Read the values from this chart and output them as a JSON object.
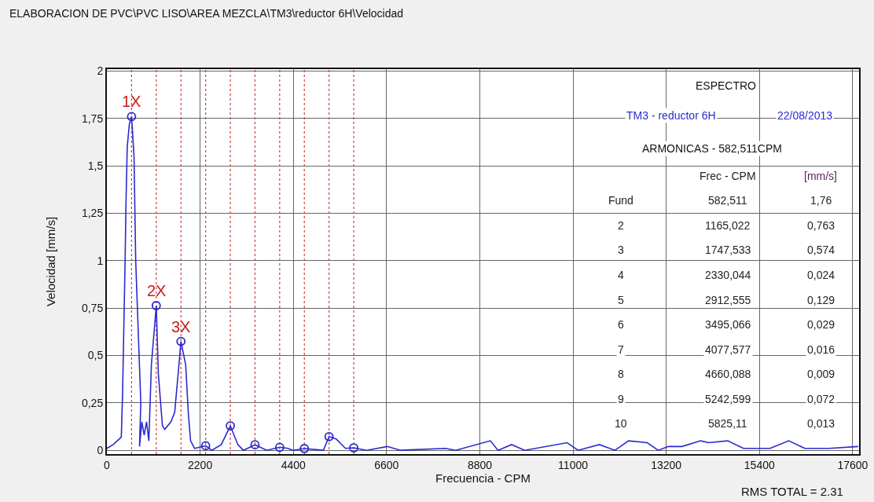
{
  "chart_data": {
    "type": "line",
    "title": "ELABORACION DE PVC\\PVC LISO\\AREA MEZCLA\\TM3\\reductor 6H\\Velocidad",
    "xlabel": "Frecuencia - CPM",
    "ylabel": "Velocidad [mm/s]",
    "xlim": [
      0,
      17750
    ],
    "ylim": [
      -0.02,
      2.01
    ],
    "xticks": [
      0,
      2200,
      4400,
      6600,
      8800,
      11000,
      13200,
      15400,
      17600
    ],
    "yticks": [
      {
        "value": 0,
        "label": "0"
      },
      {
        "value": 0.25,
        "label": "0,25"
      },
      {
        "value": 0.5,
        "label": "0,5"
      },
      {
        "value": 0.75,
        "label": "0,75"
      },
      {
        "value": 1,
        "label": "1"
      },
      {
        "value": 1.25,
        "label": "1,25"
      },
      {
        "value": 1.5,
        "label": "1,5"
      },
      {
        "value": 1.75,
        "label": "1,75"
      },
      {
        "value": 2,
        "label": "2"
      }
    ],
    "grid": true,
    "line_style": "solid",
    "series": [
      {
        "color": "#2a2ad0",
        "marker": "none",
        "x": [
          0,
          150,
          340,
          370,
          430,
          450,
          480,
          530,
          582.511,
          640,
          680,
          720,
          760,
          800,
          770,
          825,
          880,
          935,
          990,
          1050,
          1165.022,
          1215,
          1310,
          1365,
          1510,
          1600,
          1700,
          1747.533,
          1860,
          1920,
          1975,
          2070,
          2330.044,
          2475,
          2700,
          2912.555,
          3090,
          3220,
          3495.066,
          3775,
          4077.577,
          4275,
          4390,
          4660.088,
          5110,
          5242.599,
          5410,
          5630,
          5825.11,
          6130,
          6615,
          6930,
          7990,
          8230,
          9050,
          9230,
          9550,
          9860,
          10860,
          11120,
          11620,
          11990,
          12310,
          12750,
          13010,
          13250,
          13570,
          14010,
          14200,
          14650,
          15020,
          15650,
          16090,
          16470,
          17040,
          17730
        ],
        "values": [
          0.01,
          0.03,
          0.07,
          0.3,
          1.0,
          1.3,
          1.6,
          1.72,
          1.76,
          1.55,
          1.0,
          0.75,
          0.5,
          0.25,
          0.02,
          0.15,
          0.08,
          0.15,
          0.05,
          0.45,
          0.763,
          0.4,
          0.13,
          0.11,
          0.15,
          0.2,
          0.45,
          0.574,
          0.45,
          0.2,
          0.05,
          0.01,
          0.024,
          0.0,
          0.03,
          0.129,
          0.03,
          0.0,
          0.029,
          0.0,
          0.016,
          0.01,
          0.0,
          0.009,
          0.0,
          0.072,
          0.06,
          0.01,
          0.013,
          0.0,
          0.02,
          0.0,
          0.01,
          0.0,
          0.05,
          0.0,
          0.03,
          0.0,
          0.04,
          0.0,
          0.03,
          0.0,
          0.05,
          0.04,
          0.0,
          0.02,
          0.02,
          0.05,
          0.04,
          0.05,
          0.01,
          0.01,
          0.05,
          0.01,
          0.01,
          0.02
        ]
      },
      {
        "type": "scatter",
        "color": "#2a2ad0",
        "marker": "circle",
        "x": [
          582.511,
          1165.022,
          1747.533,
          2330.044,
          2912.555,
          3495.066,
          4077.577,
          4660.088,
          5242.599,
          5825.11
        ],
        "values": [
          1.76,
          0.763,
          0.574,
          0.024,
          0.129,
          0.029,
          0.016,
          0.009,
          0.072,
          0.013
        ]
      }
    ],
    "ref_lines": [
      {
        "axis": "x",
        "value": 582.511,
        "color": "#d04040",
        "line_style": "dotted"
      },
      {
        "axis": "x",
        "value": 1165.022,
        "color": "#d04040",
        "line_style": "dotted"
      },
      {
        "axis": "x",
        "value": 1747.533,
        "color": "#d04040",
        "line_style": "dotted"
      },
      {
        "axis": "x",
        "value": 2330.044,
        "color": "#d04040",
        "line_style": "dotted"
      },
      {
        "axis": "x",
        "value": 2912.555,
        "color": "#d04040",
        "line_style": "dotted"
      },
      {
        "axis": "x",
        "value": 3495.066,
        "color": "#d04040",
        "line_style": "dotted"
      },
      {
        "axis": "x",
        "value": 4077.577,
        "color": "#d04040",
        "line_style": "dotted"
      },
      {
        "axis": "x",
        "value": 4660.088,
        "color": "#d04040",
        "line_style": "dotted"
      },
      {
        "axis": "x",
        "value": 5242.599,
        "color": "#d04040",
        "line_style": "dotted"
      },
      {
        "axis": "x",
        "value": 5825.11,
        "color": "#d04040",
        "line_style": "dotted"
      }
    ],
    "annotations": [
      {
        "text": "1X",
        "x": 582.511,
        "y": 1.76
      },
      {
        "text": "2X",
        "x": 1165.022,
        "y": 0.763
      },
      {
        "text": "3X",
        "x": 1747.533,
        "y": 0.574
      },
      "RMS TOTAL = 2.31",
      "ESPECTRO",
      "TM3 - reductor 6H",
      "22/08/2013",
      "ARMONICAS - 582,511CPM",
      "Frec - CPM",
      "[mm/s]",
      "Fund",
      "582,511",
      "1,76",
      "2",
      "1165,022",
      "0,763",
      "3",
      "1747,533",
      "0,574",
      "4",
      "2330,044",
      "0,024",
      "5",
      "2912,555",
      "0,129",
      "6",
      "3495,066",
      "0,029",
      "7",
      "4077,577",
      "0,016",
      "8",
      "4660,088",
      "0,009",
      "9",
      "5242,599",
      "0,072",
      "10",
      "5825,11",
      "0,013"
    ]
  }
}
